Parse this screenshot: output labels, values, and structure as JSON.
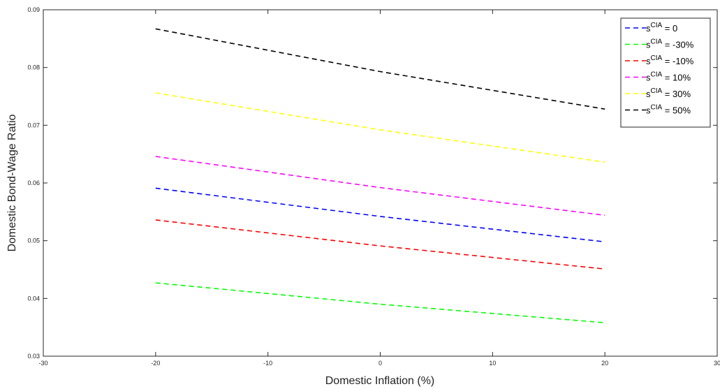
{
  "chart_data": {
    "type": "line",
    "xlabel": "Domestic Inflation (%)",
    "ylabel": "Domestic Bond-Wage Ratio",
    "xlim": [
      -30,
      30
    ],
    "ylim": [
      0.03,
      0.09
    ],
    "xticks": [
      -30,
      -20,
      -10,
      0,
      10,
      20,
      30
    ],
    "xtick_labels": [
      "-30",
      "-20",
      "-10",
      "0",
      "10",
      "20",
      "30"
    ],
    "yticks": [
      0.03,
      0.04,
      0.05,
      0.06,
      0.07,
      0.08,
      0.09
    ],
    "ytick_labels": [
      "0.03",
      "0.04",
      "0.05",
      "0.06",
      "0.07",
      "0.08",
      "0.09"
    ],
    "grid": false,
    "legend_position": "top-right",
    "x": [
      -20,
      0,
      20
    ],
    "series": [
      {
        "name_base": "s",
        "name_sup": "CIA",
        "name_suffix": " =  0",
        "color": "#0000ff",
        "style": "dashed",
        "values": [
          0.0591,
          0.0542,
          0.0498
        ]
      },
      {
        "name_base": "s",
        "name_sup": "CIA",
        "name_suffix": " = -30%",
        "color": "#00ff00",
        "style": "dashed",
        "values": [
          0.0427,
          0.039,
          0.0358
        ]
      },
      {
        "name_base": "s",
        "name_sup": "CIA",
        "name_suffix": " = -10%",
        "color": "#ff0000",
        "style": "dashed",
        "values": [
          0.0536,
          0.0491,
          0.0451
        ]
      },
      {
        "name_base": "s",
        "name_sup": "CIA",
        "name_suffix": " =  10%",
        "color": "#ff00ff",
        "style": "dashed",
        "values": [
          0.0646,
          0.0592,
          0.0544
        ]
      },
      {
        "name_base": "s",
        "name_sup": "CIA",
        "name_suffix": " =  30%",
        "color": "#ffff00",
        "style": "dashed",
        "values": [
          0.0756,
          0.0692,
          0.0636
        ]
      },
      {
        "name_base": "s",
        "name_sup": "CIA",
        "name_suffix": " =  50%",
        "color": "#000000",
        "style": "dashed",
        "values": [
          0.0867,
          0.0793,
          0.0728
        ]
      }
    ]
  }
}
